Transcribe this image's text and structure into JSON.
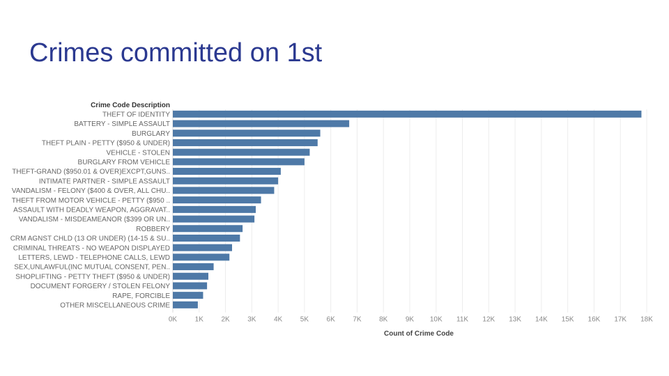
{
  "slide": {
    "title": "Crimes committed on 1st"
  },
  "chart_data": {
    "type": "bar",
    "orientation": "horizontal",
    "row_header": "Crime Code Description",
    "xlabel": "Count of Crime Code",
    "xlim": [
      0,
      18000
    ],
    "x_ticks": [
      0,
      1000,
      2000,
      3000,
      4000,
      5000,
      6000,
      7000,
      8000,
      9000,
      10000,
      11000,
      12000,
      13000,
      14000,
      15000,
      16000,
      17000,
      18000
    ],
    "x_tick_labels": [
      "0K",
      "1K",
      "2K",
      "3K",
      "4K",
      "5K",
      "6K",
      "7K",
      "8K",
      "9K",
      "10K",
      "11K",
      "12K",
      "13K",
      "14K",
      "15K",
      "16K",
      "17K",
      "18K"
    ],
    "grid": true,
    "bar_color": "#4e79a7",
    "categories": [
      "THEFT OF IDENTITY",
      "BATTERY - SIMPLE ASSAULT",
      "BURGLARY",
      "THEFT PLAIN - PETTY ($950 & UNDER)",
      "VEHICLE - STOLEN",
      "BURGLARY FROM VEHICLE",
      "THEFT-GRAND ($950.01 & OVER)EXCPT,GUNS..",
      "INTIMATE PARTNER - SIMPLE ASSAULT",
      "VANDALISM - FELONY ($400 & OVER, ALL CHU..",
      "THEFT FROM MOTOR VEHICLE - PETTY ($950 ..",
      "ASSAULT WITH DEADLY WEAPON, AGGRAVAT..",
      "VANDALISM - MISDEAMEANOR ($399 OR UN..",
      "ROBBERY",
      "CRM AGNST CHLD (13 OR UNDER) (14-15 & SU..",
      "CRIMINAL THREATS - NO WEAPON DISPLAYED",
      "LETTERS, LEWD  -  TELEPHONE CALLS, LEWD",
      "SEX,UNLAWFUL(INC MUTUAL CONSENT, PEN..",
      "SHOPLIFTING - PETTY THEFT ($950 & UNDER)",
      "DOCUMENT FORGERY / STOLEN FELONY",
      "RAPE, FORCIBLE",
      "OTHER MISCELLANEOUS CRIME"
    ],
    "values": [
      17800,
      6700,
      5600,
      5500,
      5200,
      5000,
      4100,
      4000,
      3850,
      3350,
      3150,
      3100,
      2650,
      2550,
      2250,
      2150,
      1550,
      1350,
      1300,
      1150,
      950
    ]
  }
}
